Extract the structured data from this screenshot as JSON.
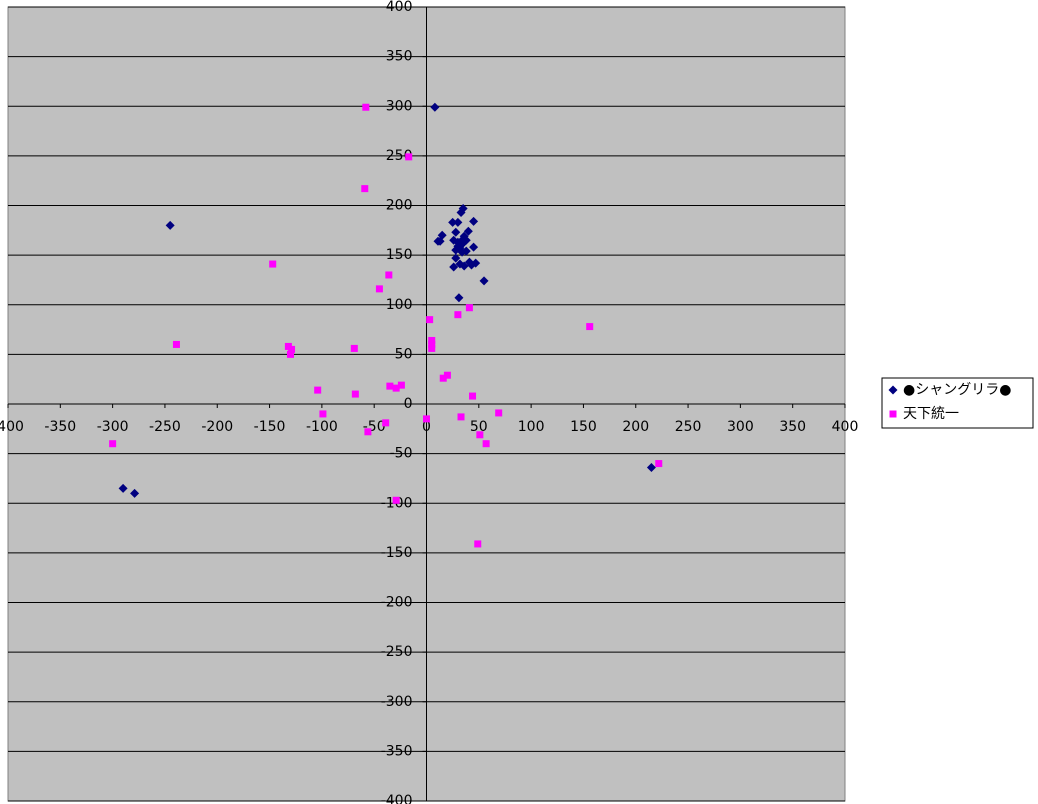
{
  "chart_data": {
    "type": "scatter",
    "xlim": [
      -400,
      400
    ],
    "ylim": [
      -400,
      400
    ],
    "xticks": [
      -400,
      -350,
      -300,
      -250,
      -200,
      -150,
      -100,
      -50,
      0,
      50,
      100,
      150,
      200,
      250,
      300,
      350,
      400
    ],
    "yticks": [
      -400,
      -350,
      -300,
      -250,
      -200,
      -150,
      -100,
      -50,
      0,
      50,
      100,
      150,
      200,
      250,
      300,
      350,
      400
    ],
    "grid": true,
    "legend": "right",
    "series": [
      {
        "name": "●シャングリラ●",
        "color": "#000080",
        "marker": "diamond",
        "x": [
          8,
          -245,
          -290,
          -279,
          215,
          31,
          55,
          13,
          15,
          11,
          25,
          30,
          33,
          35,
          45,
          28,
          26,
          30,
          34,
          36,
          40,
          38,
          32,
          28,
          28,
          34,
          45,
          41,
          43,
          47,
          26,
          32,
          36,
          38,
          30,
          34
        ],
        "values": [
          299,
          180,
          -85,
          -90,
          -64,
          107,
          124,
          164,
          170,
          164,
          183,
          183,
          193,
          197,
          184,
          173,
          165,
          163,
          161,
          169,
          174,
          165,
          157,
          155,
          147,
          153,
          158,
          143,
          140,
          142,
          138,
          141,
          139,
          154,
          159,
          165
        ]
      },
      {
        "name": "天下統一",
        "color": "#ff00ff",
        "marker": "square",
        "x": [
          -58,
          -17,
          -59,
          -147,
          -36,
          -45,
          -239,
          -132,
          -129,
          -130,
          -69,
          -104,
          -68,
          -35,
          -29,
          -24,
          -99,
          -56,
          -39,
          -300,
          -29,
          3,
          30,
          41,
          5,
          5,
          5,
          20,
          16,
          44,
          0,
          33,
          69,
          51,
          57,
          49,
          156,
          222
        ],
        "values": [
          299,
          249,
          217,
          141,
          130,
          116,
          60,
          58,
          55,
          50,
          56,
          14,
          10,
          18,
          16,
          19,
          -10,
          -28,
          -19,
          -40,
          -97,
          85,
          90,
          97,
          64,
          60,
          56,
          29,
          26,
          8,
          -15,
          -13,
          -9,
          -31,
          -40,
          -141,
          78,
          -60
        ]
      }
    ]
  }
}
